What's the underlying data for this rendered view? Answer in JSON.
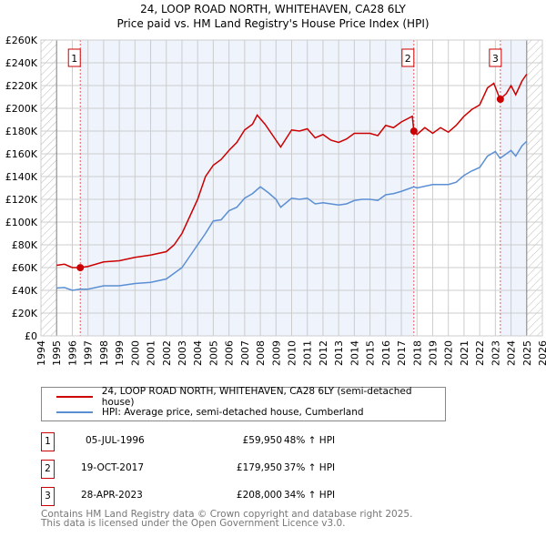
{
  "chart_data": {
    "type": "line",
    "title": "24, LOOP ROAD NORTH, WHITEHAVEN, CA28 6LY",
    "subtitle": "Price paid vs. HM Land Registry's House Price Index (HPI)",
    "xlim": [
      1994,
      2026
    ],
    "ylim": [
      0,
      260000
    ],
    "x_ticks": [
      "1994",
      "1995",
      "1996",
      "1997",
      "1998",
      "1999",
      "2000",
      "2001",
      "2002",
      "2003",
      "2004",
      "2005",
      "2006",
      "2007",
      "2008",
      "2009",
      "2010",
      "2011",
      "2012",
      "2013",
      "2014",
      "2015",
      "2016",
      "2017",
      "2018",
      "2019",
      "2020",
      "2021",
      "2022",
      "2023",
      "2024",
      "2025",
      "2026"
    ],
    "y_ticks": [
      "£0",
      "£20K",
      "£40K",
      "£60K",
      "£80K",
      "£100K",
      "£120K",
      "£140K",
      "£160K",
      "£180K",
      "£200K",
      "£220K",
      "£240K",
      "£260K"
    ],
    "grid": true,
    "series": [
      {
        "name": "24, LOOP ROAD NORTH, WHITEHAVEN, CA28 6LY (semi-detached house)",
        "color": "#cc0000",
        "x": [
          1995,
          1995.5,
          1996,
          1996.5,
          1997,
          1998,
          1999,
          2000,
          2001,
          2002,
          2002.5,
          2003,
          2003.5,
          2004,
          2004.5,
          2005,
          2005.5,
          2006,
          2006.5,
          2007,
          2007.5,
          2007.8,
          2008.3,
          2009,
          2009.3,
          2010,
          2010.5,
          2011,
          2011.5,
          2012,
          2012.5,
          2013,
          2013.5,
          2014,
          2014.5,
          2015,
          2015.5,
          2016,
          2016.5,
          2017,
          2017.7,
          2017.8,
          2018,
          2018.5,
          2019,
          2019.5,
          2020,
          2020.5,
          2021,
          2021.5,
          2022,
          2022.5,
          2022.9,
          2023.3,
          2023.7,
          2024,
          2024.3,
          2024.7,
          2025
        ],
        "y": [
          62000,
          63000,
          60000,
          60000,
          61000,
          65000,
          66000,
          69000,
          71000,
          74000,
          80000,
          90000,
          105000,
          120000,
          140000,
          150000,
          155000,
          163000,
          170000,
          181000,
          186000,
          194000,
          186000,
          172000,
          166000,
          181000,
          180000,
          182000,
          174000,
          177000,
          172000,
          170000,
          173000,
          178000,
          178000,
          178000,
          176000,
          185000,
          183000,
          188000,
          193000,
          180000,
          177000,
          183000,
          178000,
          183000,
          179000,
          185000,
          193000,
          199000,
          203000,
          218000,
          222000,
          208000,
          213000,
          220000,
          212000,
          224000,
          230000
        ]
      },
      {
        "name": "HPI: Average price, semi-detached house, Cumberland",
        "color": "#5b8fd4",
        "x": [
          1995,
          1995.5,
          1996,
          1996.5,
          1997,
          1998,
          1999,
          2000,
          2001,
          2002,
          2002.5,
          2003,
          2003.5,
          2004,
          2004.5,
          2005,
          2005.5,
          2006,
          2006.5,
          2007,
          2007.5,
          2008,
          2008.5,
          2009,
          2009.3,
          2010,
          2010.5,
          2011,
          2011.5,
          2012,
          2012.5,
          2013,
          2013.5,
          2014,
          2014.5,
          2015,
          2015.5,
          2016,
          2016.5,
          2017,
          2017.8,
          2018,
          2019,
          2020,
          2020.5,
          2021,
          2021.5,
          2022,
          2022.5,
          2023,
          2023.3,
          2023.7,
          2024,
          2024.3,
          2024.7,
          2025
        ],
        "y": [
          42000,
          42500,
          40000,
          41000,
          41000,
          44000,
          44000,
          46000,
          47000,
          50000,
          55000,
          60000,
          70000,
          80000,
          90000,
          101000,
          102000,
          110000,
          113000,
          121000,
          125000,
          131000,
          126000,
          120000,
          113000,
          121000,
          120000,
          121000,
          116000,
          117000,
          116000,
          115000,
          116000,
          119000,
          120000,
          120000,
          119000,
          124000,
          125000,
          127000,
          131000,
          130000,
          133000,
          133000,
          135000,
          141000,
          145000,
          148000,
          158000,
          162000,
          156000,
          160000,
          163000,
          158000,
          167000,
          171000
        ]
      }
    ],
    "sales": [
      {
        "label": "1",
        "x": 1996.51,
        "y": 59950,
        "date": "05-JUL-1996",
        "price": "£59,950",
        "hpi": "48% ↑ HPI"
      },
      {
        "label": "2",
        "x": 2017.8,
        "y": 179950,
        "date": "19-OCT-2017",
        "price": "£179,950",
        "hpi": "37% ↑ HPI"
      },
      {
        "label": "3",
        "x": 2023.32,
        "y": 208000,
        "date": "28-APR-2023",
        "price": "£208,000",
        "hpi": "34% ↑ HPI"
      }
    ],
    "legend_placement": "below"
  },
  "footer": {
    "line1": "Contains HM Land Registry data © Crown copyright and database right 2025.",
    "line2": "This data is licensed under the Open Government Licence v3.0."
  }
}
